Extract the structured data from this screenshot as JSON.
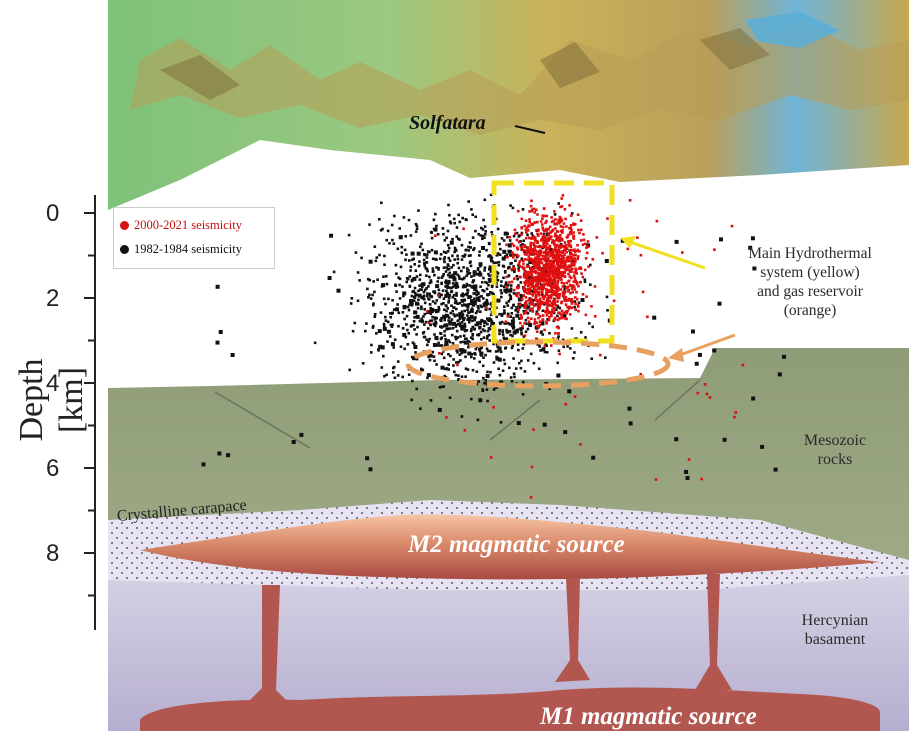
{
  "axis": {
    "ylabel": "Depth [km]",
    "ticks": [
      "0",
      "2",
      "4",
      "6",
      "8"
    ]
  },
  "legend": {
    "items": [
      {
        "label": "2000-2021 seismicity",
        "color": "#d81010"
      },
      {
        "label": "1982-1984 seismicity",
        "color": "#111111"
      }
    ]
  },
  "labels": {
    "solfatara": "Solfatara",
    "hydrothermal": [
      "Main Hydrothermal",
      "system (yellow)",
      "and gas reservoir",
      "(orange)"
    ],
    "mesozoic": [
      "Mesozoic",
      "rocks"
    ],
    "hercynian": [
      "Hercynian",
      "basament"
    ],
    "carapace": "Crystalline carapace",
    "m2": "M2 magmatic source",
    "m1": "M1 magmatic source"
  },
  "colors": {
    "mesozoic": "#8f9e7a",
    "basement": "#bdb6d2",
    "magma": "#b2574f",
    "hydrothermal_box": "#f0e020",
    "gas_reservoir": "#e8a060"
  }
}
